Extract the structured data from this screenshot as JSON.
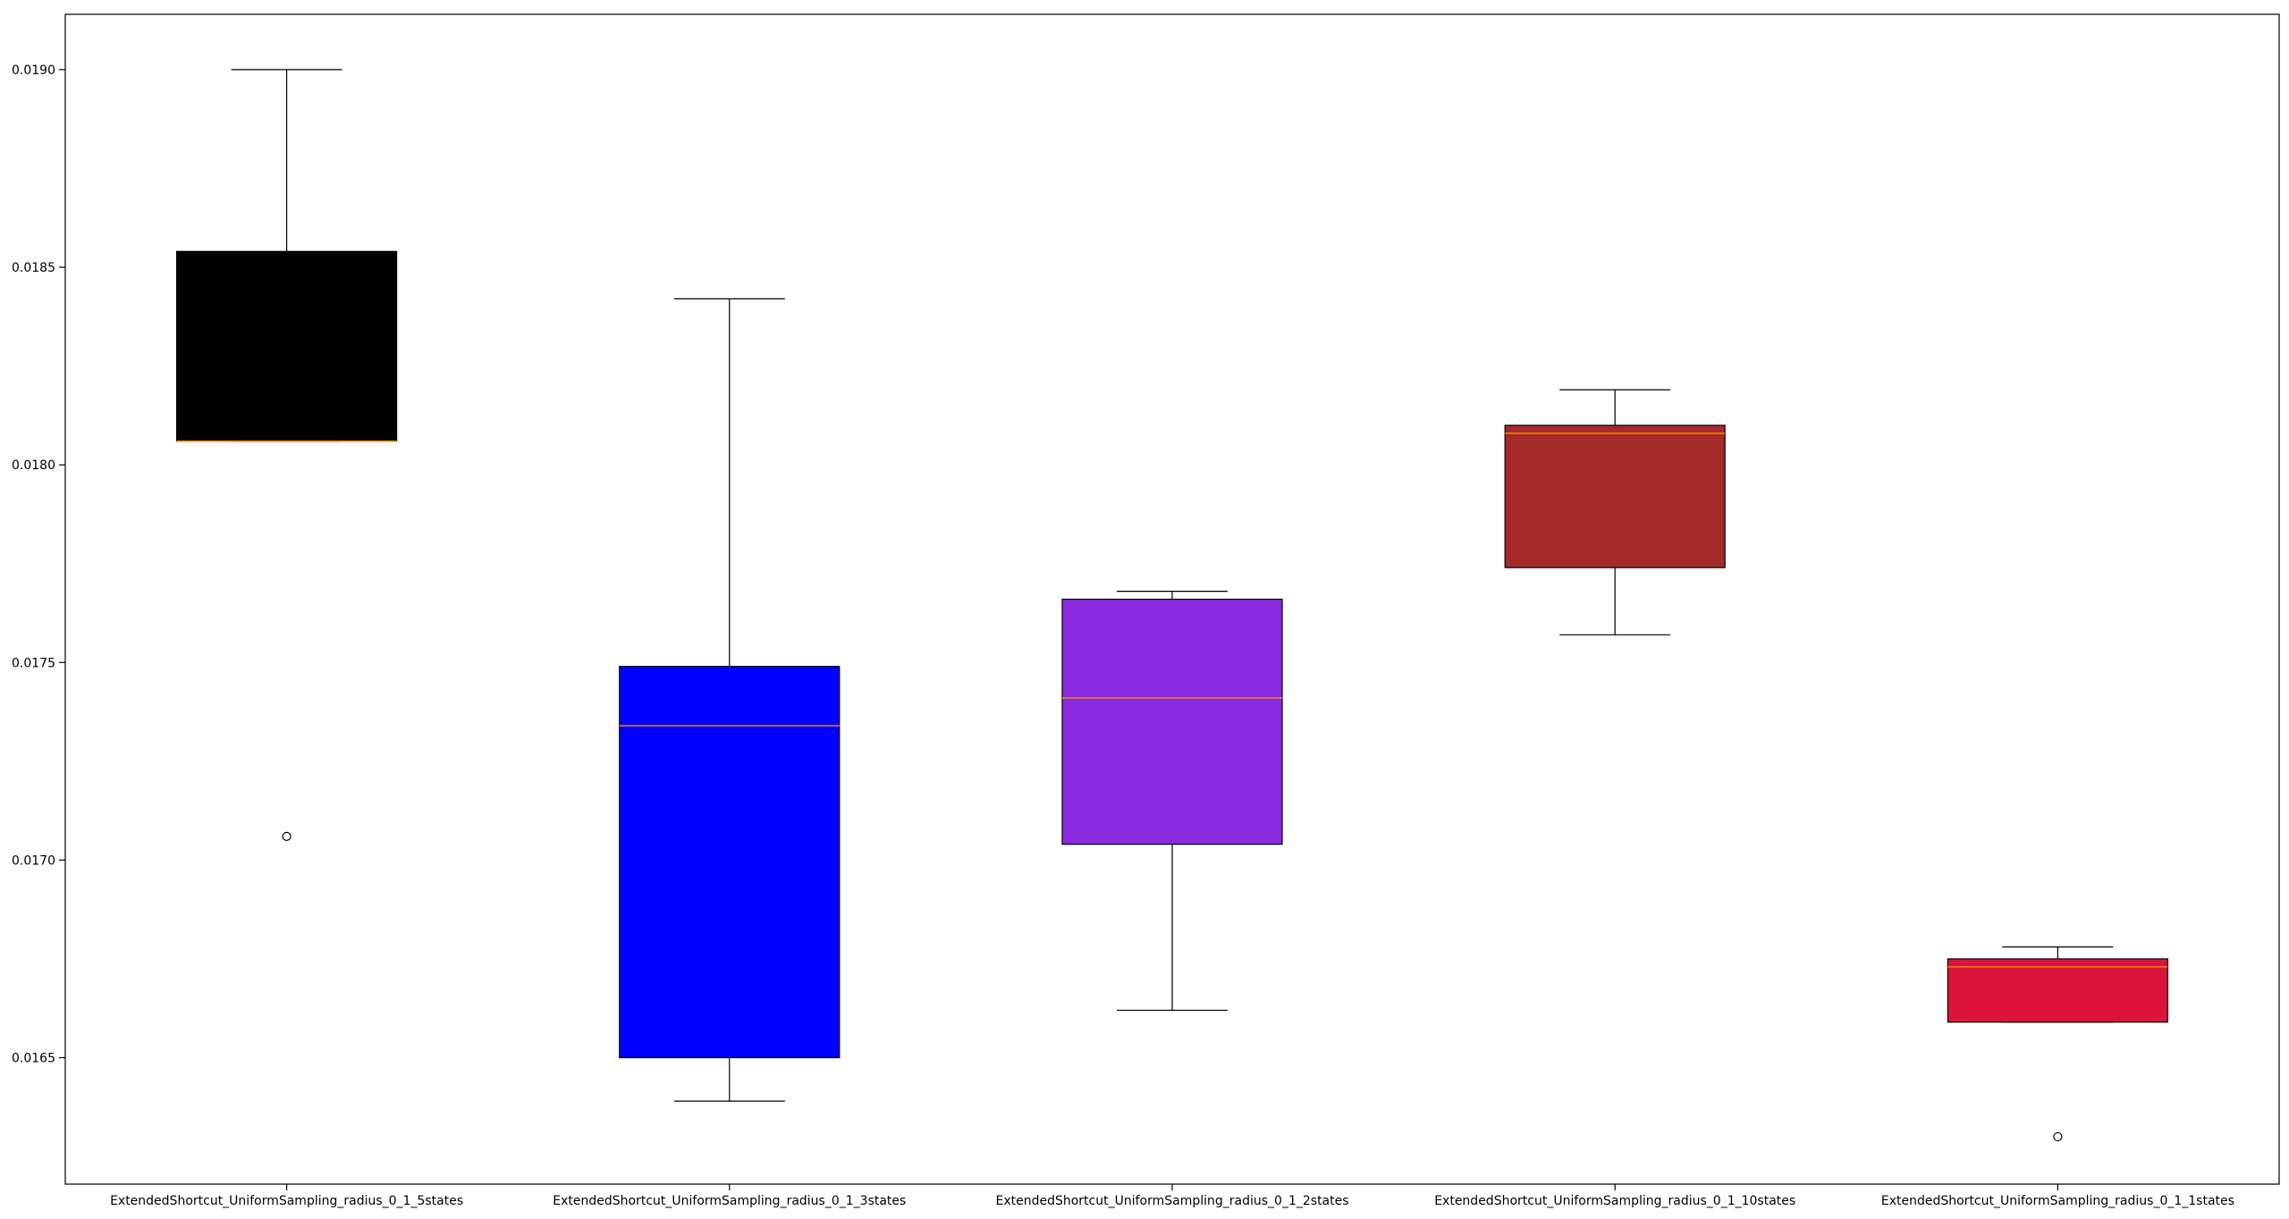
{
  "chart_data": {
    "type": "box",
    "title": "",
    "xlabel": "",
    "ylabel": "",
    "ylim": [
      0.01618,
      0.01914
    ],
    "yticks": [
      0.0165,
      0.017,
      0.0175,
      0.018,
      0.0185,
      0.019
    ],
    "ytick_labels": [
      "0.0165",
      "0.0170",
      "0.0175",
      "0.0180",
      "0.0185",
      "0.0190"
    ],
    "grid": false,
    "legend": "none",
    "categories": [
      "ExtendedShortcut_UniformSampling_radius_0_1_5states",
      "ExtendedShortcut_UniformSampling_radius_0_1_3states",
      "ExtendedShortcut_UniformSampling_radius_0_1_2states",
      "ExtendedShortcut_UniformSampling_radius_0_1_10states",
      "ExtendedShortcut_UniformSampling_radius_0_1_1states"
    ],
    "boxes": [
      {
        "whisker_low": 0.01806,
        "q1": 0.01806,
        "median": 0.01806,
        "q3": 0.01854,
        "whisker_high": 0.019,
        "outliers": [
          0.01706
        ],
        "color": "#000000"
      },
      {
        "whisker_low": 0.01639,
        "q1": 0.0165,
        "median": 0.01734,
        "q3": 0.01749,
        "whisker_high": 0.01842,
        "outliers": [],
        "color": "#0000ff"
      },
      {
        "whisker_low": 0.01662,
        "q1": 0.01704,
        "median": 0.01741,
        "q3": 0.01766,
        "whisker_high": 0.01768,
        "outliers": [],
        "color": "#8a2be2"
      },
      {
        "whisker_low": 0.01757,
        "q1": 0.01774,
        "median": 0.01808,
        "q3": 0.0181,
        "whisker_high": 0.01819,
        "outliers": [],
        "color": "#a52a2a"
      },
      {
        "whisker_low": 0.01659,
        "q1": 0.01659,
        "median": 0.01673,
        "q3": 0.01675,
        "whisker_high": 0.01678,
        "outliers": [
          0.0163
        ],
        "color": "#dc143c"
      }
    ],
    "median_color": "#ff8c00",
    "outlier_style": "hollow circle"
  }
}
